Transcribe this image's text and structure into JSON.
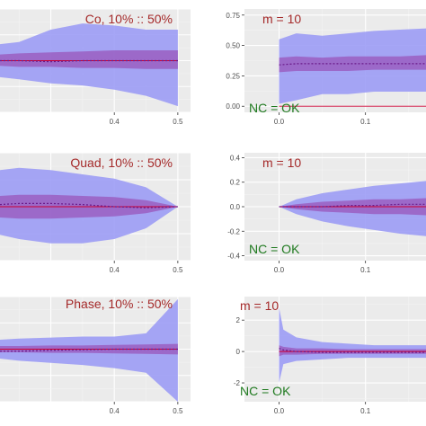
{
  "colors": {
    "panel_bg": "#ebebeb",
    "grid_major": "#ffffff",
    "grid_minor": "#f4f4f4",
    "outer_band": "#9c9cf5",
    "inner_band": "#9955bb",
    "median_line": "#6a1a8a",
    "title_text": "#a52a2a",
    "annotation_text": "#1f7a1f",
    "zero_line": "#cc0033"
  },
  "chart_data": [
    {
      "type": "area",
      "title": "Co,  10% :: 50%",
      "x_ticks": [
        0.4,
        0.5
      ],
      "x_tick_labels": [
        "0.4",
        "0.5"
      ],
      "xlim": [
        0.22,
        0.52
      ],
      "ylim": [
        -0.5,
        0.5
      ],
      "y_ticks": [],
      "x": [
        0.22,
        0.25,
        0.3,
        0.35,
        0.4,
        0.45,
        0.5
      ],
      "outer_upper": [
        0.16,
        0.18,
        0.3,
        0.36,
        0.34,
        0.3,
        0.3
      ],
      "outer_lower": [
        -0.16,
        -0.18,
        -0.22,
        -0.24,
        -0.28,
        -0.34,
        -0.44
      ],
      "inner_upper": [
        0.06,
        0.07,
        0.08,
        0.09,
        0.1,
        0.1,
        0.1
      ],
      "inner_lower": [
        -0.05,
        -0.06,
        -0.06,
        -0.07,
        -0.07,
        -0.08,
        -0.08
      ],
      "median": [
        0.0,
        0.0,
        -0.01,
        0.0,
        0.0,
        0.0,
        0.0
      ]
    },
    {
      "type": "area",
      "title": "m = 10",
      "annotation": "NC = OK",
      "x_ticks": [
        0.0,
        0.1
      ],
      "x_tick_labels": [
        "0.0",
        "0.1"
      ],
      "xlim": [
        -0.04,
        0.17
      ],
      "ylim": [
        -0.05,
        0.8
      ],
      "y_ticks": [
        0.0,
        0.25,
        0.5,
        0.75
      ],
      "y_tick_labels": [
        "0.00",
        "0.25",
        "0.50",
        "0.75"
      ],
      "x": [
        0.0,
        0.02,
        0.05,
        0.08,
        0.11,
        0.14,
        0.17
      ],
      "outer_upper": [
        0.55,
        0.6,
        0.58,
        0.6,
        0.62,
        0.63,
        0.64
      ],
      "outer_lower": [
        0.02,
        0.05,
        0.1,
        0.1,
        0.12,
        0.12,
        0.12
      ],
      "inner_upper": [
        0.4,
        0.41,
        0.4,
        0.41,
        0.41,
        0.41,
        0.42
      ],
      "inner_lower": [
        0.28,
        0.29,
        0.29,
        0.29,
        0.3,
        0.3,
        0.3
      ],
      "median": [
        0.34,
        0.35,
        0.35,
        0.35,
        0.35,
        0.35,
        0.35
      ]
    },
    {
      "type": "area",
      "title": "Quad,  10% :: 50%",
      "x_ticks": [
        0.4,
        0.5
      ],
      "x_tick_labels": [
        "0.4",
        "0.5"
      ],
      "xlim": [
        0.22,
        0.52
      ],
      "ylim": [
        -0.5,
        0.5
      ],
      "y_ticks": [],
      "x": [
        0.22,
        0.25,
        0.3,
        0.35,
        0.4,
        0.45,
        0.5
      ],
      "outer_upper": [
        0.34,
        0.36,
        0.34,
        0.3,
        0.26,
        0.18,
        0.0
      ],
      "outer_lower": [
        -0.26,
        -0.3,
        -0.34,
        -0.34,
        -0.3,
        -0.2,
        0.0
      ],
      "inner_upper": [
        0.1,
        0.11,
        0.11,
        0.1,
        0.09,
        0.06,
        0.0
      ],
      "inner_lower": [
        -0.1,
        -0.11,
        -0.11,
        -0.1,
        -0.09,
        -0.06,
        0.0
      ],
      "median": [
        0.02,
        0.03,
        0.03,
        0.02,
        0.0,
        -0.01,
        0.0
      ]
    },
    {
      "type": "area",
      "title": "m = 10",
      "annotation": "NC = OK",
      "x_ticks": [
        0.0,
        0.1
      ],
      "x_tick_labels": [
        "0.0",
        "0.1"
      ],
      "xlim": [
        -0.04,
        0.17
      ],
      "ylim": [
        -0.44,
        0.44
      ],
      "y_ticks": [
        -0.4,
        -0.2,
        0.0,
        0.2,
        0.4
      ],
      "y_tick_labels": [
        "-0.4",
        "-0.2",
        "0.0",
        "0.2",
        "0.4"
      ],
      "x": [
        0.0,
        0.02,
        0.05,
        0.08,
        0.11,
        0.14,
        0.17
      ],
      "outer_upper": [
        0.0,
        0.06,
        0.11,
        0.14,
        0.17,
        0.19,
        0.21
      ],
      "outer_lower": [
        0.0,
        -0.06,
        -0.12,
        -0.16,
        -0.19,
        -0.22,
        -0.24
      ],
      "inner_upper": [
        0.0,
        0.02,
        0.04,
        0.05,
        0.06,
        0.06,
        0.07
      ],
      "inner_lower": [
        0.0,
        -0.02,
        -0.04,
        -0.05,
        -0.06,
        -0.06,
        -0.07
      ],
      "median": [
        0.0,
        0.0,
        0.0,
        0.01,
        0.01,
        0.02,
        0.02
      ]
    },
    {
      "type": "area",
      "title": "Phase,  10% :: 50%",
      "x_ticks": [
        0.4,
        0.5
      ],
      "x_tick_labels": [
        "0.4",
        "0.5"
      ],
      "xlim": [
        0.22,
        0.52
      ],
      "ylim": [
        -1.0,
        1.0
      ],
      "y_ticks": [],
      "x": [
        0.22,
        0.25,
        0.3,
        0.35,
        0.4,
        0.45,
        0.5
      ],
      "outer_upper": [
        0.18,
        0.2,
        0.22,
        0.24,
        0.24,
        0.3,
        0.95
      ],
      "outer_lower": [
        -0.18,
        -0.22,
        -0.26,
        -0.3,
        -0.36,
        -0.45,
        -1.0
      ],
      "inner_upper": [
        0.06,
        0.06,
        0.07,
        0.07,
        0.08,
        0.09,
        0.1
      ],
      "inner_lower": [
        -0.06,
        -0.06,
        -0.07,
        -0.07,
        -0.08,
        -0.09,
        -0.1
      ],
      "median": [
        -0.04,
        -0.04,
        -0.02,
        -0.01,
        0.0,
        0.0,
        0.0
      ]
    },
    {
      "type": "area",
      "title": "m = 10",
      "annotation": "NC = OK",
      "x_ticks": [
        0.0,
        0.1
      ],
      "x_tick_labels": [
        "0.0",
        "0.1"
      ],
      "xlim": [
        -0.04,
        0.17
      ],
      "ylim": [
        -3.2,
        3.5
      ],
      "y_ticks": [
        -2,
        0,
        2
      ],
      "y_tick_labels": [
        "-2",
        "0",
        "2"
      ],
      "x": [
        0.0,
        0.005,
        0.02,
        0.05,
        0.08,
        0.11,
        0.14,
        0.17
      ],
      "outer_upper": [
        2.8,
        1.4,
        0.9,
        0.6,
        0.5,
        0.4,
        0.4,
        0.4
      ],
      "outer_lower": [
        -2.0,
        -0.8,
        -0.6,
        -0.5,
        -0.4,
        -0.4,
        -0.4,
        -0.4
      ],
      "inner_upper": [
        0.4,
        0.3,
        0.2,
        0.2,
        0.15,
        0.15,
        0.15,
        0.15
      ],
      "inner_lower": [
        -0.3,
        -0.2,
        -0.2,
        -0.15,
        -0.15,
        -0.15,
        -0.15,
        -0.15
      ],
      "median": [
        0.2,
        0.1,
        0.0,
        -0.05,
        -0.05,
        -0.05,
        -0.05,
        -0.05
      ]
    }
  ]
}
